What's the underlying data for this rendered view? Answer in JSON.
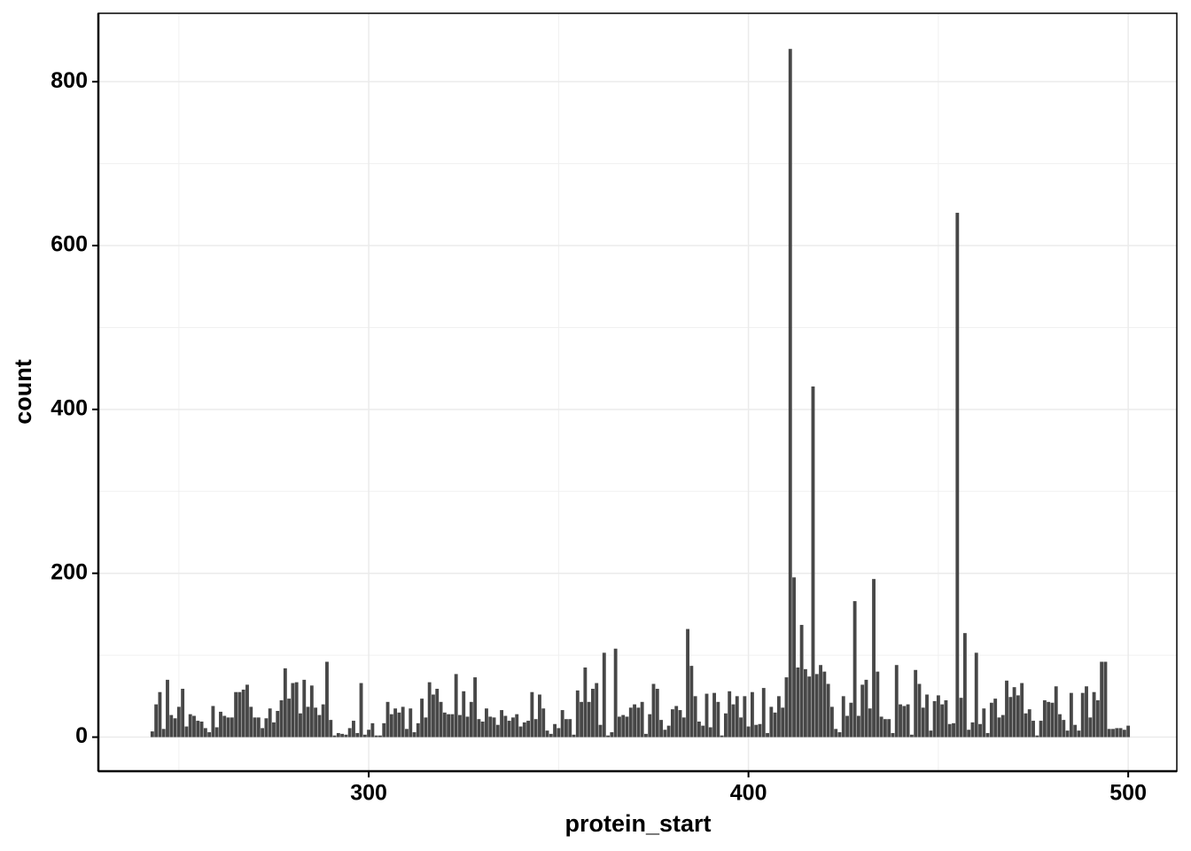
{
  "chart_data": {
    "type": "bar",
    "xlabel": "protein_start",
    "ylabel": "count",
    "x": [
      243,
      244,
      245,
      246,
      247,
      248,
      249,
      250,
      251,
      252,
      253,
      254,
      255,
      256,
      257,
      258,
      259,
      260,
      261,
      262,
      263,
      264,
      265,
      266,
      267,
      268,
      269,
      270,
      271,
      272,
      273,
      274,
      275,
      276,
      277,
      278,
      279,
      280,
      281,
      282,
      283,
      284,
      285,
      286,
      287,
      288,
      289,
      290,
      291,
      292,
      293,
      294,
      295,
      296,
      297,
      298,
      299,
      300,
      301,
      302,
      303,
      304,
      305,
      306,
      307,
      308,
      309,
      310,
      311,
      312,
      313,
      314,
      315,
      316,
      317,
      318,
      319,
      320,
      321,
      322,
      323,
      324,
      325,
      326,
      327,
      328,
      329,
      330,
      331,
      332,
      333,
      334,
      335,
      336,
      337,
      338,
      339,
      340,
      341,
      342,
      343,
      344,
      345,
      346,
      347,
      348,
      349,
      350,
      351,
      352,
      353,
      354,
      355,
      356,
      357,
      358,
      359,
      360,
      361,
      362,
      363,
      364,
      365,
      366,
      367,
      368,
      369,
      370,
      371,
      372,
      373,
      374,
      375,
      376,
      377,
      378,
      379,
      380,
      381,
      382,
      383,
      384,
      385,
      386,
      387,
      388,
      389,
      390,
      391,
      392,
      393,
      394,
      395,
      396,
      397,
      398,
      399,
      400,
      401,
      402,
      403,
      404,
      405,
      406,
      407,
      408,
      409,
      410,
      411,
      412,
      413,
      414,
      415,
      416,
      417,
      418,
      419,
      420,
      421,
      422,
      423,
      424,
      425,
      426,
      427,
      428,
      429,
      430,
      431,
      432,
      433,
      434,
      435,
      436,
      437,
      438,
      439,
      440,
      441,
      442,
      443,
      444,
      445,
      446,
      447,
      448,
      449,
      450,
      451,
      452,
      453,
      454,
      455,
      456,
      457,
      458,
      459,
      460,
      461,
      462,
      463,
      464,
      465,
      466,
      467,
      468,
      469,
      470,
      471,
      472,
      473,
      474,
      475,
      476,
      477,
      478,
      479,
      480,
      481,
      482,
      483,
      484,
      485,
      486,
      487,
      488,
      489,
      490,
      491,
      492,
      493,
      494,
      495,
      496,
      497,
      498,
      499,
      500
    ],
    "values": [
      7,
      40,
      55,
      10,
      70,
      27,
      23,
      37,
      59,
      13,
      28,
      26,
      20,
      19,
      11,
      6,
      38,
      12,
      31,
      26,
      24,
      24,
      55,
      55,
      58,
      64,
      37,
      24,
      24,
      11,
      23,
      35,
      18,
      32,
      45,
      84,
      47,
      66,
      67,
      29,
      70,
      37,
      63,
      36,
      27,
      40,
      92,
      21,
      2,
      5,
      4,
      3,
      11,
      20,
      5,
      66,
      3,
      9,
      17,
      2,
      2,
      17,
      43,
      28,
      35,
      30,
      37,
      10,
      35,
      6,
      17,
      47,
      24,
      67,
      52,
      59,
      43,
      30,
      28,
      28,
      77,
      27,
      56,
      25,
      43,
      73,
      22,
      19,
      35,
      25,
      24,
      15,
      33,
      26,
      20,
      24,
      28,
      13,
      18,
      20,
      55,
      22,
      52,
      35,
      8,
      4,
      16,
      11,
      33,
      22,
      22,
      3,
      57,
      43,
      85,
      43,
      59,
      66,
      15,
      103,
      2,
      6,
      108,
      25,
      27,
      25,
      36,
      40,
      36,
      43,
      4,
      28,
      65,
      59,
      21,
      9,
      14,
      34,
      38,
      33,
      24,
      132,
      87,
      50,
      19,
      14,
      53,
      12,
      54,
      43,
      2,
      29,
      56,
      40,
      50,
      24,
      50,
      13,
      55,
      15,
      16,
      60,
      5,
      37,
      30,
      50,
      36,
      73,
      840,
      195,
      85,
      137,
      83,
      74,
      428,
      77,
      88,
      80,
      65,
      37,
      10,
      6,
      50,
      26,
      42,
      166,
      26,
      64,
      70,
      35,
      193,
      80,
      25,
      22,
      22,
      5,
      88,
      40,
      38,
      40,
      3,
      82,
      65,
      36,
      52,
      8,
      44,
      51,
      40,
      45,
      16,
      17,
      640,
      48,
      127,
      9,
      18,
      103,
      16,
      35,
      5,
      42,
      47,
      24,
      27,
      69,
      49,
      61,
      51,
      66,
      29,
      34,
      20,
      2,
      20,
      45,
      43,
      42,
      62,
      28,
      21,
      8,
      54,
      15,
      8,
      54,
      62,
      24,
      55,
      45,
      92,
      92,
      10,
      10,
      11,
      11,
      9,
      14
    ],
    "color": "#474747",
    "xlim": [
      228.8,
      512.8
    ],
    "ylim": [
      -41.6,
      883.5
    ],
    "xticks": [
      300,
      400,
      500
    ],
    "yticks": [
      0,
      200,
      400,
      600,
      800
    ],
    "x_minor_grid": [
      250,
      350,
      450
    ],
    "y_minor_grid": [
      100,
      300,
      500,
      700
    ],
    "grid": true
  }
}
